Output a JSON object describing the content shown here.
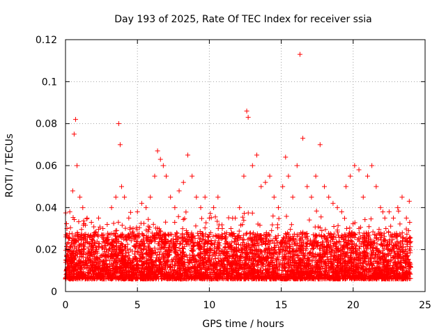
{
  "chart_data": {
    "type": "scatter",
    "title": "Day 193 of 2025, Rate Of TEC Index for receiver ssia",
    "xlabel": "GPS time / hours",
    "ylabel": "ROTI / TECUs",
    "xlim": [
      0,
      25
    ],
    "ylim": [
      0,
      0.12
    ],
    "x_ticks": [
      0,
      5,
      10,
      15,
      20,
      25
    ],
    "x_tick_labels": [
      "0",
      "5",
      "10",
      "15",
      "20",
      "25"
    ],
    "y_ticks": [
      0,
      0.02,
      0.04,
      0.06,
      0.08,
      0.1,
      0.12
    ],
    "y_tick_labels": [
      "0",
      "0.02",
      "0.04",
      "0.06",
      "0.08",
      "0.1",
      "0.12"
    ],
    "grid": true,
    "marker": "plus",
    "marker_color": "#ff0000",
    "series": [
      {
        "x": [
          0.1,
          0.3,
          0.5,
          0.6,
          0.7,
          0.8,
          1.0,
          1.2,
          1.5,
          1.8,
          2.0,
          2.3,
          2.6,
          2.9,
          3.2,
          3.5,
          3.7,
          3.8,
          3.9,
          4.1,
          4.4,
          4.7,
          5.0,
          5.3,
          5.6,
          5.9,
          6.2,
          6.4,
          6.6,
          6.8,
          7.0,
          7.3,
          7.6,
          7.9,
          8.2,
          8.5,
          8.8,
          9.1,
          9.4,
          9.7,
          10.0,
          10.3,
          10.6,
          10.9,
          11.2,
          11.5,
          11.8,
          12.1,
          12.4,
          12.6,
          12.7,
          13.0,
          13.3,
          13.6,
          13.9,
          14.2,
          14.5,
          14.8,
          15.1,
          15.3,
          15.5,
          15.8,
          16.1,
          16.3,
          16.5,
          16.8,
          17.1,
          17.4,
          17.7,
          18.0,
          18.3,
          18.6,
          18.9,
          19.2,
          19.5,
          19.8,
          20.1,
          20.4,
          20.7,
          21.0,
          21.3,
          21.6,
          21.9,
          22.2,
          22.5,
          22.8,
          23.1,
          23.4,
          23.7,
          23.9,
          0.2,
          0.6,
          1.1,
          1.6,
          2.1,
          2.7,
          3.3,
          3.8,
          4.3,
          4.9,
          5.4,
          5.9,
          6.5,
          7.1,
          7.6,
          8.1,
          8.7,
          9.2,
          9.8,
          10.3,
          10.8,
          11.4,
          11.9,
          12.5,
          13.1,
          13.6,
          14.1,
          14.7,
          15.2,
          15.7,
          16.3,
          16.9,
          17.4,
          17.9,
          18.5,
          19.1,
          19.6,
          20.2,
          20.7,
          21.2,
          21.8,
          22.3,
          22.9,
          23.4,
          23.8
        ],
        "y": [
          0.03,
          0.038,
          0.048,
          0.075,
          0.082,
          0.06,
          0.045,
          0.04,
          0.035,
          0.033,
          0.028,
          0.035,
          0.03,
          0.032,
          0.04,
          0.045,
          0.08,
          0.07,
          0.05,
          0.045,
          0.035,
          0.03,
          0.038,
          0.042,
          0.04,
          0.045,
          0.055,
          0.067,
          0.063,
          0.06,
          0.055,
          0.045,
          0.04,
          0.048,
          0.052,
          0.065,
          0.055,
          0.045,
          0.04,
          0.045,
          0.035,
          0.04,
          0.045,
          0.03,
          0.028,
          0.03,
          0.035,
          0.04,
          0.055,
          0.086,
          0.083,
          0.06,
          0.065,
          0.05,
          0.052,
          0.055,
          0.045,
          0.04,
          0.05,
          0.064,
          0.055,
          0.045,
          0.06,
          0.113,
          0.073,
          0.05,
          0.045,
          0.055,
          0.07,
          0.05,
          0.045,
          0.042,
          0.04,
          0.038,
          0.05,
          0.055,
          0.06,
          0.058,
          0.045,
          0.055,
          0.06,
          0.05,
          0.04,
          0.035,
          0.038,
          0.035,
          0.04,
          0.045,
          0.035,
          0.043,
          0.016,
          0.012,
          0.014,
          0.018,
          0.015,
          0.013,
          0.017,
          0.014,
          0.012,
          0.016,
          0.013,
          0.015,
          0.011,
          0.014,
          0.016,
          0.012,
          0.015,
          0.013,
          0.011,
          0.014,
          0.012,
          0.01,
          0.013,
          0.015,
          0.012,
          0.014,
          0.011,
          0.013,
          0.016,
          0.012,
          0.014,
          0.013,
          0.015,
          0.012,
          0.014,
          0.011,
          0.013,
          0.015,
          0.012,
          0.014,
          0.013,
          0.011,
          0.014,
          0.012,
          0.015
        ]
      }
    ]
  }
}
